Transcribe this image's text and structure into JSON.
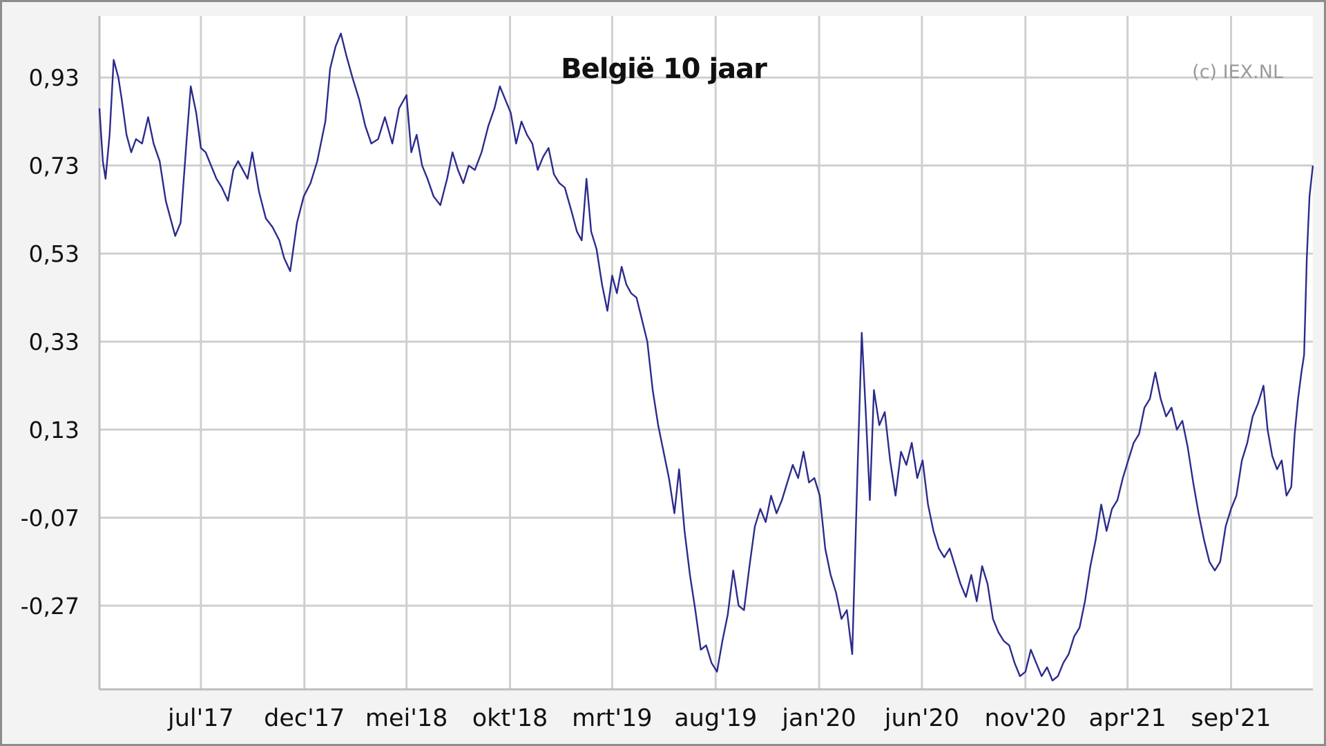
{
  "chart_data": {
    "type": "line",
    "title": "België 10 jaar",
    "credit": "(c) IEX.NL",
    "xlabel": "",
    "ylabel": "",
    "y_ticks": [
      0.93,
      0.73,
      0.53,
      0.33,
      0.13,
      -0.07,
      -0.27
    ],
    "y_tick_labels": [
      "0,93",
      "0,73",
      "0,53",
      "0,33",
      "0,13",
      "-0,07",
      "-0,27"
    ],
    "ylim": [
      -0.46,
      1.07
    ],
    "x_range": [
      "2017-02-01",
      "2021-12-31"
    ],
    "x_ticks": [
      {
        "date": "2017-07-01",
        "label": "jul'17"
      },
      {
        "date": "2017-12-01",
        "label": "dec'17"
      },
      {
        "date": "2018-05-01",
        "label": "mei'18"
      },
      {
        "date": "2018-10-01",
        "label": "okt'18"
      },
      {
        "date": "2019-03-01",
        "label": "mrt'19"
      },
      {
        "date": "2019-08-01",
        "label": "aug'19"
      },
      {
        "date": "2020-01-01",
        "label": "jan'20"
      },
      {
        "date": "2020-06-01",
        "label": "jun'20"
      },
      {
        "date": "2020-11-01",
        "label": "nov'20"
      },
      {
        "date": "2021-04-01",
        "label": "apr'21"
      },
      {
        "date": "2021-09-01",
        "label": "sep'21"
      }
    ],
    "grid": true,
    "line_color": "#2b2b8c",
    "series": [
      {
        "points": [
          [
            "2017-02-01",
            0.86
          ],
          [
            "2017-02-06",
            0.74
          ],
          [
            "2017-02-10",
            0.7
          ],
          [
            "2017-02-16",
            0.8
          ],
          [
            "2017-02-22",
            0.97
          ],
          [
            "2017-03-01",
            0.93
          ],
          [
            "2017-03-06",
            0.88
          ],
          [
            "2017-03-13",
            0.8
          ],
          [
            "2017-03-20",
            0.76
          ],
          [
            "2017-03-27",
            0.79
          ],
          [
            "2017-04-05",
            0.78
          ],
          [
            "2017-04-14",
            0.84
          ],
          [
            "2017-04-22",
            0.78
          ],
          [
            "2017-05-01",
            0.74
          ],
          [
            "2017-05-10",
            0.65
          ],
          [
            "2017-05-17",
            0.61
          ],
          [
            "2017-05-24",
            0.57
          ],
          [
            "2017-06-01",
            0.6
          ],
          [
            "2017-06-10",
            0.79
          ],
          [
            "2017-06-16",
            0.91
          ],
          [
            "2017-06-24",
            0.85
          ],
          [
            "2017-07-01",
            0.77
          ],
          [
            "2017-07-08",
            0.76
          ],
          [
            "2017-07-16",
            0.73
          ],
          [
            "2017-07-24",
            0.7
          ],
          [
            "2017-08-01",
            0.68
          ],
          [
            "2017-08-10",
            0.65
          ],
          [
            "2017-08-18",
            0.72
          ],
          [
            "2017-08-25",
            0.74
          ],
          [
            "2017-09-01",
            0.72
          ],
          [
            "2017-09-08",
            0.7
          ],
          [
            "2017-09-15",
            0.76
          ],
          [
            "2017-09-25",
            0.67
          ],
          [
            "2017-10-05",
            0.61
          ],
          [
            "2017-10-15",
            0.59
          ],
          [
            "2017-10-25",
            0.56
          ],
          [
            "2017-11-01",
            0.52
          ],
          [
            "2017-11-10",
            0.49
          ],
          [
            "2017-11-20",
            0.6
          ],
          [
            "2017-11-30",
            0.66
          ],
          [
            "2017-12-10",
            0.69
          ],
          [
            "2017-12-20",
            0.74
          ],
          [
            "2018-01-01",
            0.83
          ],
          [
            "2018-01-08",
            0.95
          ],
          [
            "2018-01-16",
            1.0
          ],
          [
            "2018-01-24",
            1.03
          ],
          [
            "2018-02-01",
            0.98
          ],
          [
            "2018-02-10",
            0.93
          ],
          [
            "2018-02-20",
            0.88
          ],
          [
            "2018-03-01",
            0.82
          ],
          [
            "2018-03-10",
            0.78
          ],
          [
            "2018-03-20",
            0.79
          ],
          [
            "2018-03-30",
            0.84
          ],
          [
            "2018-04-10",
            0.78
          ],
          [
            "2018-04-20",
            0.86
          ],
          [
            "2018-05-01",
            0.89
          ],
          [
            "2018-05-08",
            0.76
          ],
          [
            "2018-05-16",
            0.8
          ],
          [
            "2018-05-24",
            0.73
          ],
          [
            "2018-06-01",
            0.7
          ],
          [
            "2018-06-10",
            0.66
          ],
          [
            "2018-06-20",
            0.64
          ],
          [
            "2018-06-30",
            0.7
          ],
          [
            "2018-07-08",
            0.76
          ],
          [
            "2018-07-16",
            0.72
          ],
          [
            "2018-07-24",
            0.69
          ],
          [
            "2018-08-01",
            0.73
          ],
          [
            "2018-08-10",
            0.72
          ],
          [
            "2018-08-20",
            0.76
          ],
          [
            "2018-08-30",
            0.82
          ],
          [
            "2018-09-08",
            0.86
          ],
          [
            "2018-09-16",
            0.91
          ],
          [
            "2018-09-24",
            0.88
          ],
          [
            "2018-10-02",
            0.85
          ],
          [
            "2018-10-10",
            0.78
          ],
          [
            "2018-10-18",
            0.83
          ],
          [
            "2018-10-26",
            0.8
          ],
          [
            "2018-11-03",
            0.78
          ],
          [
            "2018-11-11",
            0.72
          ],
          [
            "2018-11-19",
            0.75
          ],
          [
            "2018-11-27",
            0.77
          ],
          [
            "2018-12-05",
            0.71
          ],
          [
            "2018-12-13",
            0.69
          ],
          [
            "2018-12-21",
            0.68
          ],
          [
            "2019-01-01",
            0.62
          ],
          [
            "2019-01-08",
            0.58
          ],
          [
            "2019-01-15",
            0.56
          ],
          [
            "2019-01-22",
            0.7
          ],
          [
            "2019-01-29",
            0.58
          ],
          [
            "2019-02-06",
            0.54
          ],
          [
            "2019-02-14",
            0.46
          ],
          [
            "2019-02-22",
            0.4
          ],
          [
            "2019-03-01",
            0.48
          ],
          [
            "2019-03-08",
            0.44
          ],
          [
            "2019-03-15",
            0.5
          ],
          [
            "2019-03-22",
            0.46
          ],
          [
            "2019-03-29",
            0.44
          ],
          [
            "2019-04-06",
            0.43
          ],
          [
            "2019-04-14",
            0.38
          ],
          [
            "2019-04-22",
            0.33
          ],
          [
            "2019-04-30",
            0.22
          ],
          [
            "2019-05-08",
            0.14
          ],
          [
            "2019-05-16",
            0.08
          ],
          [
            "2019-05-24",
            0.02
          ],
          [
            "2019-06-01",
            -0.06
          ],
          [
            "2019-06-08",
            0.04
          ],
          [
            "2019-06-16",
            -0.1
          ],
          [
            "2019-06-24",
            -0.2
          ],
          [
            "2019-07-02",
            -0.28
          ],
          [
            "2019-07-10",
            -0.37
          ],
          [
            "2019-07-18",
            -0.36
          ],
          [
            "2019-07-26",
            -0.4
          ],
          [
            "2019-08-03",
            -0.42
          ],
          [
            "2019-08-11",
            -0.35
          ],
          [
            "2019-08-19",
            -0.29
          ],
          [
            "2019-08-27",
            -0.19
          ],
          [
            "2019-09-04",
            -0.27
          ],
          [
            "2019-09-12",
            -0.28
          ],
          [
            "2019-09-20",
            -0.18
          ],
          [
            "2019-09-28",
            -0.09
          ],
          [
            "2019-10-06",
            -0.05
          ],
          [
            "2019-10-14",
            -0.08
          ],
          [
            "2019-10-22",
            -0.02
          ],
          [
            "2019-10-30",
            -0.06
          ],
          [
            "2019-11-07",
            -0.03
          ],
          [
            "2019-11-15",
            0.01
          ],
          [
            "2019-11-23",
            0.05
          ],
          [
            "2019-12-01",
            0.02
          ],
          [
            "2019-12-09",
            0.08
          ],
          [
            "2019-12-17",
            0.01
          ],
          [
            "2019-12-25",
            0.02
          ],
          [
            "2020-01-02",
            -0.02
          ],
          [
            "2020-01-10",
            -0.14
          ],
          [
            "2020-01-18",
            -0.2
          ],
          [
            "2020-01-26",
            -0.24
          ],
          [
            "2020-02-03",
            -0.3
          ],
          [
            "2020-02-11",
            -0.28
          ],
          [
            "2020-02-19",
            -0.38
          ],
          [
            "2020-02-27",
            0.05
          ],
          [
            "2020-03-04",
            0.35
          ],
          [
            "2020-03-10",
            0.17
          ],
          [
            "2020-03-16",
            -0.03
          ],
          [
            "2020-03-22",
            0.22
          ],
          [
            "2020-03-30",
            0.14
          ],
          [
            "2020-04-07",
            0.17
          ],
          [
            "2020-04-15",
            0.06
          ],
          [
            "2020-04-23",
            -0.02
          ],
          [
            "2020-05-01",
            0.08
          ],
          [
            "2020-05-09",
            0.05
          ],
          [
            "2020-05-17",
            0.1
          ],
          [
            "2020-05-25",
            0.02
          ],
          [
            "2020-06-02",
            0.06
          ],
          [
            "2020-06-10",
            -0.04
          ],
          [
            "2020-06-18",
            -0.1
          ],
          [
            "2020-06-26",
            -0.14
          ],
          [
            "2020-07-04",
            -0.16
          ],
          [
            "2020-07-12",
            -0.14
          ],
          [
            "2020-07-20",
            -0.18
          ],
          [
            "2020-07-28",
            -0.22
          ],
          [
            "2020-08-05",
            -0.25
          ],
          [
            "2020-08-13",
            -0.2
          ],
          [
            "2020-08-21",
            -0.26
          ],
          [
            "2020-08-29",
            -0.18
          ],
          [
            "2020-09-06",
            -0.22
          ],
          [
            "2020-09-14",
            -0.3
          ],
          [
            "2020-09-22",
            -0.33
          ],
          [
            "2020-09-30",
            -0.35
          ],
          [
            "2020-10-08",
            -0.36
          ],
          [
            "2020-10-16",
            -0.4
          ],
          [
            "2020-10-24",
            -0.43
          ],
          [
            "2020-11-01",
            -0.42
          ],
          [
            "2020-11-09",
            -0.37
          ],
          [
            "2020-11-17",
            -0.4
          ],
          [
            "2020-11-25",
            -0.43
          ],
          [
            "2020-12-03",
            -0.41
          ],
          [
            "2020-12-11",
            -0.44
          ],
          [
            "2020-12-19",
            -0.43
          ],
          [
            "2020-12-27",
            -0.4
          ],
          [
            "2021-01-04",
            -0.38
          ],
          [
            "2021-01-12",
            -0.34
          ],
          [
            "2021-01-20",
            -0.32
          ],
          [
            "2021-01-28",
            -0.26
          ],
          [
            "2021-02-05",
            -0.18
          ],
          [
            "2021-02-13",
            -0.12
          ],
          [
            "2021-02-21",
            -0.04
          ],
          [
            "2021-03-01",
            -0.1
          ],
          [
            "2021-03-09",
            -0.05
          ],
          [
            "2021-03-17",
            -0.03
          ],
          [
            "2021-03-25",
            0.02
          ],
          [
            "2021-04-02",
            0.06
          ],
          [
            "2021-04-10",
            0.1
          ],
          [
            "2021-04-18",
            0.12
          ],
          [
            "2021-04-26",
            0.18
          ],
          [
            "2021-05-04",
            0.2
          ],
          [
            "2021-05-12",
            0.26
          ],
          [
            "2021-05-20",
            0.2
          ],
          [
            "2021-05-28",
            0.16
          ],
          [
            "2021-06-05",
            0.18
          ],
          [
            "2021-06-13",
            0.13
          ],
          [
            "2021-06-21",
            0.15
          ],
          [
            "2021-06-29",
            0.09
          ],
          [
            "2021-07-07",
            0.01
          ],
          [
            "2021-07-15",
            -0.06
          ],
          [
            "2021-07-23",
            -0.12
          ],
          [
            "2021-07-31",
            -0.17
          ],
          [
            "2021-08-08",
            -0.19
          ],
          [
            "2021-08-16",
            -0.17
          ],
          [
            "2021-08-24",
            -0.09
          ],
          [
            "2021-09-01",
            -0.05
          ],
          [
            "2021-09-09",
            -0.02
          ],
          [
            "2021-09-17",
            0.06
          ],
          [
            "2021-09-25",
            0.1
          ],
          [
            "2021-10-03",
            0.16
          ],
          [
            "2021-10-11",
            0.19
          ],
          [
            "2021-10-19",
            0.23
          ],
          [
            "2021-10-25",
            0.13
          ],
          [
            "2021-11-01",
            0.07
          ],
          [
            "2021-11-08",
            0.04
          ],
          [
            "2021-11-15",
            0.06
          ],
          [
            "2021-11-22",
            -0.02
          ],
          [
            "2021-11-29",
            0.0
          ],
          [
            "2021-12-04",
            0.12
          ],
          [
            "2021-12-09",
            0.2
          ],
          [
            "2021-12-14",
            0.26
          ],
          [
            "2021-12-18",
            0.3
          ],
          [
            "2021-12-22",
            0.52
          ],
          [
            "2021-12-26",
            0.66
          ],
          [
            "2021-12-31",
            0.73
          ]
        ]
      }
    ]
  }
}
